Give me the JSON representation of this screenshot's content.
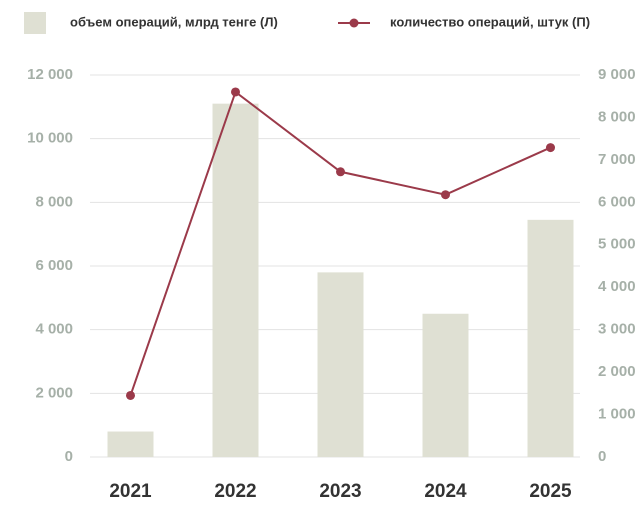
{
  "chart_data": {
    "type": "bar_line",
    "categories": [
      "2021",
      "2022",
      "2023",
      "2024",
      "2025"
    ],
    "series": [
      {
        "name": "объем операций, млрд тенге (Л)",
        "color": "#dfe0d3",
        "type": "bar",
        "values": [
          800,
          11100,
          5800,
          4500,
          7450
        ]
      },
      {
        "name": "количество операций, штук (П)",
        "color": "#9b3a4a",
        "type": "line",
        "axis": "y2",
        "values": [
          1450,
          8600,
          6720,
          6180,
          7290
        ]
      }
    ],
    "ylim": [
      0,
      12000
    ],
    "yticks": [
      0,
      {
        "value": 2000,
        "label": "2 000"
      },
      {
        "value": 4000,
        "label": "4 000"
      },
      {
        "value": 6000,
        "label": "6 000"
      },
      {
        "value": 8000,
        "label": "8 000"
      },
      {
        "value": 10000,
        "label": "10 000"
      },
      {
        "value": 12000,
        "label": "12 000"
      }
    ],
    "y2lim": [
      0,
      9000
    ],
    "y2ticks": [
      0,
      {
        "value": 1000,
        "label": "1 000"
      },
      {
        "value": 2000,
        "label": "2 000"
      },
      {
        "value": 3000,
        "label": "3 000"
      },
      {
        "value": 4000,
        "label": "4 000"
      },
      {
        "value": 5000,
        "label": "5 000"
      },
      {
        "value": 6000,
        "label": "6 000"
      },
      {
        "value": 7000,
        "label": "7 000"
      },
      {
        "value": 8000,
        "label": "8 000"
      },
      {
        "value": 9000,
        "label": "9 000"
      }
    ],
    "grid": true,
    "legend": "top"
  }
}
